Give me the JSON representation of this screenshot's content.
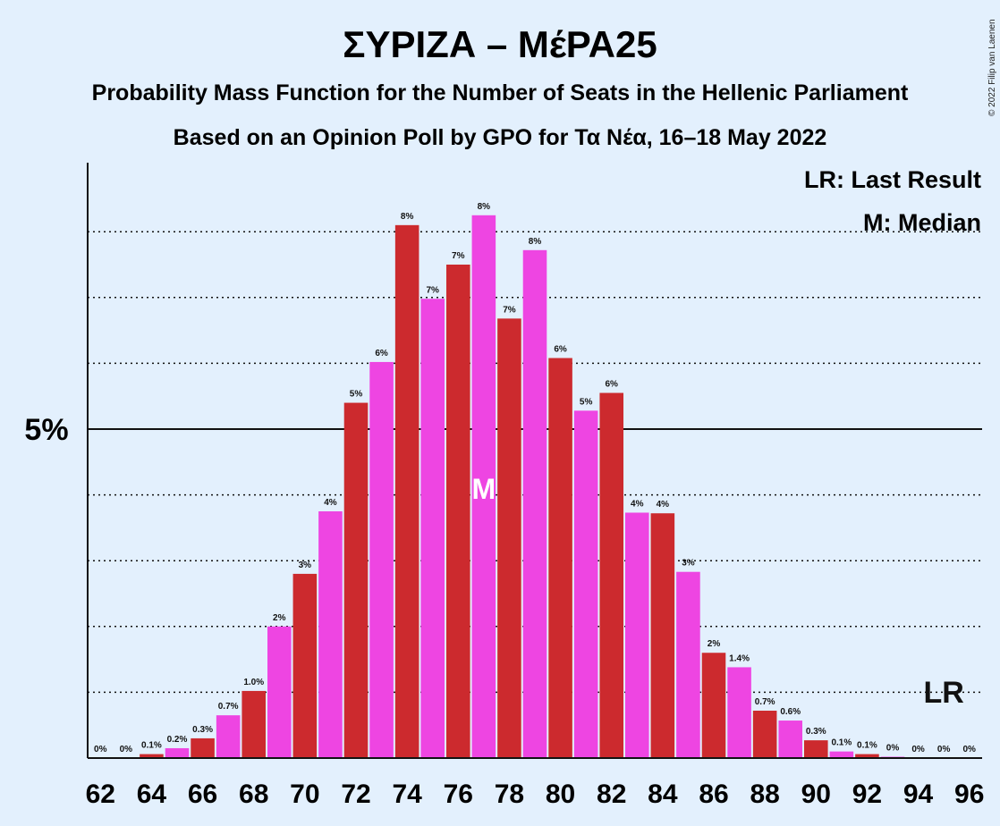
{
  "copyright": "© 2022 Filip van Laenen",
  "chart_data": {
    "type": "bar",
    "title": "ΣΥΡΙΖΑ – ΜέΡΑ25",
    "subtitle": "Probability Mass Function for the Number of Seats in the Hellenic Parliament",
    "subtitle2": "Based on an Opinion Poll by GPO for Τα Νέα, 16–18 May 2022",
    "legend": [
      "LR: Last Result",
      "M: Median"
    ],
    "categories": [
      62,
      63,
      64,
      65,
      66,
      67,
      68,
      69,
      70,
      71,
      72,
      73,
      74,
      75,
      76,
      77,
      78,
      79,
      80,
      81,
      82,
      83,
      84,
      85,
      86,
      87,
      88,
      89,
      90,
      91,
      92,
      93,
      94,
      95,
      96
    ],
    "values": [
      0,
      0,
      0.06,
      0.15,
      0.3,
      0.65,
      1.02,
      2.0,
      2.8,
      3.75,
      5.4,
      6.02,
      8.1,
      6.98,
      7.5,
      8.25,
      6.68,
      7.72,
      6.08,
      5.28,
      5.55,
      3.73,
      3.72,
      2.83,
      1.6,
      1.38,
      0.72,
      0.57,
      0.27,
      0.1,
      0.06,
      0.02,
      0,
      0,
      0
    ],
    "bar_labels": [
      "0%",
      "0%",
      "0.1%",
      "0.2%",
      "0.3%",
      "0.7%",
      "1.0%",
      "2%",
      "3%",
      "4%",
      "5%",
      "6%",
      "8%",
      "7%",
      "7%",
      "8%",
      "7%",
      "8%",
      "6%",
      "5%",
      "6%",
      "4%",
      "4%",
      "3%",
      "2%",
      "1.4%",
      "0.7%",
      "0.6%",
      "0.3%",
      "0.1%",
      "0.1%",
      "0%",
      "0%",
      "0%",
      "0%"
    ],
    "x_tick_labels": [
      "62",
      "64",
      "66",
      "68",
      "70",
      "72",
      "74",
      "76",
      "78",
      "80",
      "82",
      "84",
      "86",
      "88",
      "90",
      "92",
      "94",
      "96"
    ],
    "y_tick_label": "5%",
    "y_tick_value": 5,
    "ylim": [
      0,
      9
    ],
    "gridlines": [
      1,
      2,
      3,
      4,
      5,
      6,
      7,
      8
    ],
    "median": 77,
    "median_label": "M",
    "last_result": 95,
    "last_result_label": "LR",
    "colors": {
      "odd_bar": "#ee45e2",
      "even_bar": "#cc2a2e",
      "background": "#e3f0fd",
      "grid": "#111111"
    }
  }
}
